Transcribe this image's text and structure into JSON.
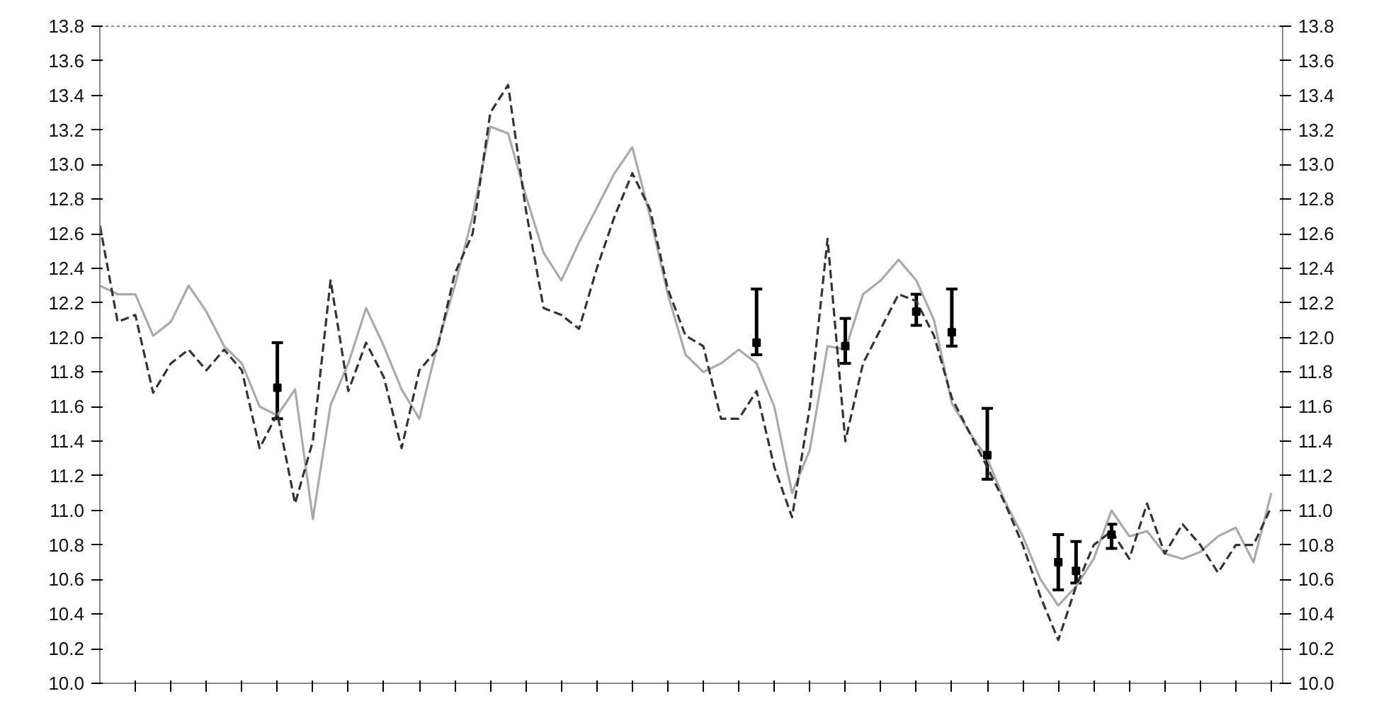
{
  "chart_data": {
    "type": "line",
    "categories": [
      null,
      null,
      null,
      null,
      null,
      null,
      null,
      null,
      null,
      null,
      null,
      null,
      null,
      null,
      null,
      null,
      null,
      null,
      null,
      null,
      null,
      null,
      null,
      null,
      null,
      null,
      null,
      null,
      null,
      null,
      null,
      null,
      null,
      null,
      null,
      null,
      null,
      null,
      null,
      null,
      null,
      null,
      null,
      null,
      null,
      null,
      null,
      null,
      null,
      null,
      null,
      null,
      null,
      null,
      null,
      null,
      null,
      null,
      null,
      null,
      null,
      null,
      null,
      null,
      null,
      null,
      null
    ],
    "ylim": [
      10.0,
      13.8
    ],
    "yticks": [
      {
        "value": 10.0,
        "label": "10.0"
      },
      {
        "value": 10.2,
        "label": "10.2"
      },
      {
        "value": 10.4,
        "label": "10.4"
      },
      {
        "value": 10.6,
        "label": "10.6"
      },
      {
        "value": 10.8,
        "label": "10.8"
      },
      {
        "value": 11.0,
        "label": "11.0"
      },
      {
        "value": 11.2,
        "label": "11.2"
      },
      {
        "value": 11.4,
        "label": "11.4"
      },
      {
        "value": 11.6,
        "label": "11.6"
      },
      {
        "value": 11.8,
        "label": "11.8"
      },
      {
        "value": 12.0,
        "label": "12.0"
      },
      {
        "value": 12.2,
        "label": "12.2"
      },
      {
        "value": 12.4,
        "label": "12.4"
      },
      {
        "value": 12.6,
        "label": "12.6"
      },
      {
        "value": 12.8,
        "label": "12.8"
      },
      {
        "value": 13.0,
        "label": "13.0"
      },
      {
        "value": 13.2,
        "label": "13.2"
      },
      {
        "value": 13.4,
        "label": "13.4"
      },
      {
        "value": 13.6,
        "label": "13.6"
      },
      {
        "value": 13.8,
        "label": "13.8"
      }
    ],
    "y2lim": [
      10.0,
      13.8
    ],
    "y2ticks": [
      {
        "value": 10.0,
        "label": "10.0"
      },
      {
        "value": 10.2,
        "label": "10.2"
      },
      {
        "value": 10.4,
        "label": "10.4"
      },
      {
        "value": 10.6,
        "label": "10.6"
      },
      {
        "value": 10.8,
        "label": "10.8"
      },
      {
        "value": 11.0,
        "label": "11.0"
      },
      {
        "value": 11.2,
        "label": "11.2"
      },
      {
        "value": 11.4,
        "label": "11.4"
      },
      {
        "value": 11.6,
        "label": "11.6"
      },
      {
        "value": 11.8,
        "label": "11.8"
      },
      {
        "value": 12.0,
        "label": "12.0"
      },
      {
        "value": 12.2,
        "label": "12.2"
      },
      {
        "value": 12.4,
        "label": "12.4"
      },
      {
        "value": 12.6,
        "label": "12.6"
      },
      {
        "value": 12.8,
        "label": "12.8"
      },
      {
        "value": 13.0,
        "label": "13.0"
      },
      {
        "value": 13.2,
        "label": "13.2"
      },
      {
        "value": 13.4,
        "label": "13.4"
      },
      {
        "value": 13.6,
        "label": "13.6"
      },
      {
        "value": 13.8,
        "label": "13.8"
      }
    ],
    "tick_labels": "y",
    "grid": false,
    "series": [
      {
        "color": "#aaaaaa",
        "line_style": "solid",
        "values": [
          12.3,
          12.25,
          12.25,
          12.01,
          12.09,
          12.3,
          12.15,
          11.95,
          11.85,
          11.6,
          11.55,
          11.7,
          10.95,
          11.61,
          11.85,
          12.17,
          11.95,
          11.7,
          11.53,
          11.95,
          12.3,
          12.7,
          13.22,
          13.18,
          12.82,
          12.49,
          12.33,
          12.55,
          12.75,
          12.95,
          13.1,
          12.7,
          12.25,
          11.9,
          11.8,
          11.85,
          11.93,
          11.85,
          11.6,
          11.1,
          11.35,
          11.95,
          11.93,
          12.25,
          12.33,
          12.45,
          12.33,
          12.1,
          11.62,
          11.45,
          11.3,
          11.05,
          10.85,
          10.6,
          10.45,
          10.56,
          10.72,
          11.0,
          10.85,
          10.88,
          10.75,
          10.72,
          10.76,
          10.85,
          10.9,
          10.7,
          11.1
        ]
      },
      {
        "color": "#333333",
        "line_style": "dashed",
        "values": [
          12.65,
          12.09,
          12.13,
          11.68,
          11.85,
          11.93,
          11.81,
          11.93,
          11.81,
          11.36,
          11.56,
          11.04,
          11.4,
          12.33,
          11.69,
          11.97,
          11.77,
          11.36,
          11.81,
          11.93,
          12.37,
          12.6,
          13.3,
          13.46,
          12.74,
          12.17,
          12.13,
          12.05,
          12.4,
          12.7,
          12.95,
          12.74,
          12.28,
          12.01,
          11.95,
          11.53,
          11.53,
          11.69,
          11.25,
          10.96,
          11.6,
          12.57,
          11.4,
          11.85,
          12.05,
          12.25,
          12.21,
          12.01,
          11.65,
          11.45,
          11.25,
          11.04,
          10.8,
          10.5,
          10.25,
          10.56,
          10.8,
          10.88,
          10.72,
          11.04,
          10.75,
          10.92,
          10.8,
          10.64,
          10.8,
          10.8,
          11.02
        ]
      },
      {
        "type": "scatter",
        "color": "#000000",
        "marker": "square",
        "values": [
          null,
          null,
          null,
          null,
          null,
          null,
          null,
          null,
          null,
          null,
          11.71,
          null,
          null,
          null,
          null,
          null,
          null,
          null,
          null,
          null,
          null,
          null,
          null,
          null,
          null,
          null,
          null,
          null,
          null,
          null,
          null,
          null,
          null,
          null,
          null,
          null,
          null,
          11.97,
          null,
          null,
          null,
          null,
          11.95,
          null,
          null,
          null,
          12.15,
          null,
          12.03,
          null,
          11.32,
          null,
          null,
          null,
          10.7,
          10.65,
          null,
          10.86,
          null,
          null,
          null,
          null,
          null,
          null,
          null,
          null,
          null
        ],
        "errors": [
          null,
          null,
          null,
          null,
          null,
          null,
          null,
          null,
          null,
          null,
          [
            11.53,
            11.97
          ],
          null,
          null,
          null,
          null,
          null,
          null,
          null,
          null,
          null,
          null,
          null,
          null,
          null,
          null,
          null,
          null,
          null,
          null,
          null,
          null,
          null,
          null,
          null,
          null,
          null,
          null,
          [
            11.9,
            12.28
          ],
          null,
          null,
          null,
          null,
          [
            11.85,
            12.11
          ],
          null,
          null,
          null,
          [
            12.07,
            12.25
          ],
          null,
          [
            11.95,
            12.28
          ],
          null,
          [
            11.18,
            11.59
          ],
          null,
          null,
          null,
          [
            10.54,
            10.86
          ],
          [
            10.58,
            10.82
          ],
          null,
          [
            10.78,
            10.92
          ],
          null,
          null,
          null,
          null,
          null,
          null,
          null,
          null,
          null
        ]
      }
    ]
  }
}
